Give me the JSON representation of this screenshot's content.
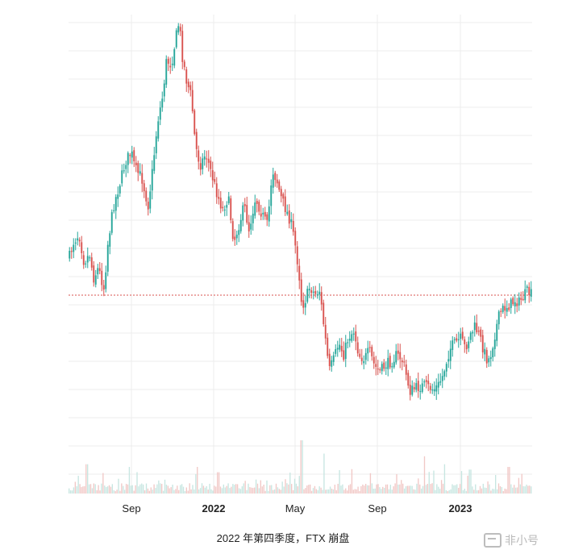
{
  "chart_data": {
    "type": "candlestick",
    "title": "",
    "xlabel": "",
    "ylabel": "",
    "x_ticks": [
      {
        "label": "Sep",
        "bold": false
      },
      {
        "label": "2022",
        "bold": true
      },
      {
        "label": "May",
        "bold": false
      },
      {
        "label": "Sep",
        "bold": false
      },
      {
        "label": "2023",
        "bold": true
      }
    ],
    "grid": true,
    "reference_line": {
      "style": "dotted",
      "color": "#d9534f"
    },
    "colors": {
      "up": "#26a69a",
      "down": "#d9534f",
      "grid": "#ececec"
    },
    "keypoints": [
      [
        0,
        318
      ],
      [
        5,
        300
      ],
      [
        12,
        290
      ],
      [
        18,
        325
      ],
      [
        25,
        315
      ],
      [
        30,
        345
      ],
      [
        36,
        332
      ],
      [
        43,
        358
      ],
      [
        48,
        300
      ],
      [
        55,
        255
      ],
      [
        62,
        230
      ],
      [
        70,
        200
      ],
      [
        77,
        188
      ],
      [
        82,
        210
      ],
      [
        90,
        220
      ],
      [
        98,
        255
      ],
      [
        103,
        215
      ],
      [
        110,
        150
      ],
      [
        116,
        120
      ],
      [
        121,
        75
      ],
      [
        127,
        80
      ],
      [
        133,
        45
      ],
      [
        137,
        25
      ],
      [
        140,
        65
      ],
      [
        146,
        100
      ],
      [
        152,
        120
      ],
      [
        157,
        180
      ],
      [
        163,
        205
      ],
      [
        170,
        190
      ],
      [
        177,
        215
      ],
      [
        184,
        240
      ],
      [
        191,
        260
      ],
      [
        198,
        245
      ],
      [
        205,
        300
      ],
      [
        211,
        280
      ],
      [
        218,
        255
      ],
      [
        224,
        285
      ],
      [
        232,
        245
      ],
      [
        240,
        265
      ],
      [
        247,
        280
      ],
      [
        253,
        210
      ],
      [
        259,
        225
      ],
      [
        264,
        245
      ],
      [
        270,
        260
      ],
      [
        276,
        275
      ],
      [
        281,
        300
      ],
      [
        286,
        335
      ],
      [
        290,
        380
      ],
      [
        295,
        370
      ],
      [
        300,
        355
      ],
      [
        306,
        365
      ],
      [
        312,
        360
      ],
      [
        318,
        410
      ],
      [
        324,
        460
      ],
      [
        330,
        445
      ],
      [
        336,
        425
      ],
      [
        342,
        440
      ],
      [
        348,
        418
      ],
      [
        355,
        410
      ],
      [
        361,
        440
      ],
      [
        368,
        445
      ],
      [
        374,
        435
      ],
      [
        381,
        455
      ],
      [
        388,
        460
      ],
      [
        395,
        452
      ],
      [
        402,
        448
      ],
      [
        408,
        440
      ],
      [
        414,
        445
      ],
      [
        418,
        455
      ],
      [
        421,
        470
      ],
      [
        425,
        485
      ],
      [
        430,
        482
      ],
      [
        436,
        480
      ],
      [
        442,
        478
      ],
      [
        448,
        480
      ],
      [
        454,
        483
      ],
      [
        460,
        478
      ],
      [
        466,
        465
      ],
      [
        471,
        445
      ],
      [
        476,
        430
      ],
      [
        482,
        425
      ],
      [
        488,
        420
      ],
      [
        494,
        432
      ],
      [
        500,
        415
      ],
      [
        506,
        405
      ],
      [
        512,
        418
      ],
      [
        517,
        435
      ],
      [
        522,
        448
      ],
      [
        526,
        438
      ],
      [
        530,
        418
      ],
      [
        535,
        395
      ],
      [
        539,
        385
      ],
      [
        545,
        380
      ],
      [
        550,
        378
      ],
      [
        556,
        372
      ],
      [
        561,
        375
      ],
      [
        566,
        368
      ],
      [
        571,
        362
      ],
      [
        576,
        365
      ]
    ],
    "volume_spikes": [
      [
        22,
        0.55
      ],
      [
        75,
        0.5
      ],
      [
        160,
        0.5
      ],
      [
        186,
        0.4
      ],
      [
        290,
        1.0
      ],
      [
        318,
        0.75
      ],
      [
        443,
        0.7
      ],
      [
        468,
        0.55
      ],
      [
        500,
        0.45
      ],
      [
        548,
        0.5
      ]
    ]
  },
  "caption": "2022 年第四季度，FTX 崩盘",
  "watermark": "非小号"
}
